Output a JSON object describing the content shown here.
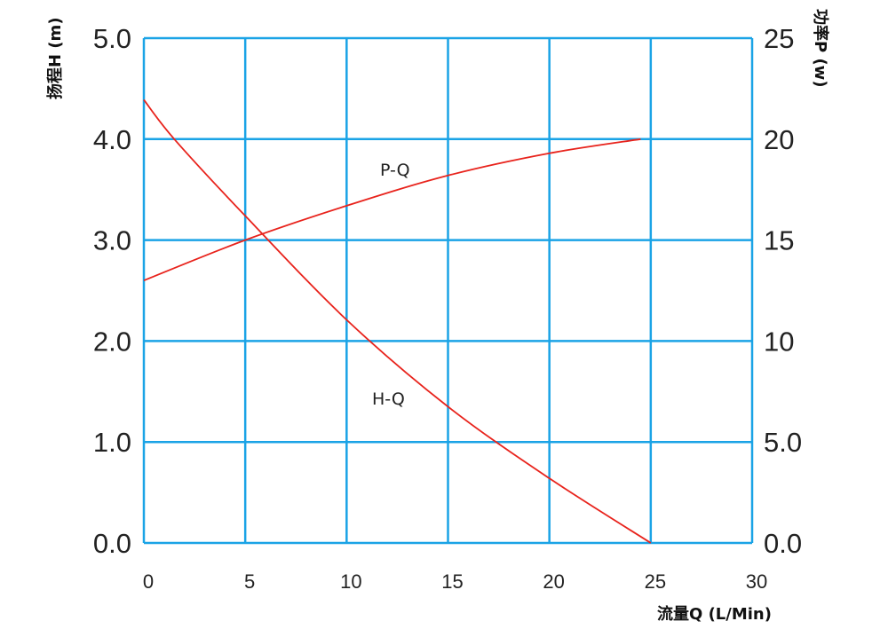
{
  "chart_data": {
    "type": "line",
    "xlabel": "流量Q (L/Min)",
    "ylabel_left": "扬程H (m)",
    "ylabel_right": "功率P (w)",
    "xlim": [
      0,
      30
    ],
    "ylim_left": [
      0,
      5
    ],
    "ylim_right": [
      0,
      25
    ],
    "x_ticks": [
      "0",
      "5",
      "10",
      "15",
      "20",
      "25",
      "30"
    ],
    "y_left_ticks": [
      "0.0",
      "1.0",
      "2.0",
      "3.0",
      "4.0",
      "5.0"
    ],
    "y_right_ticks": [
      "0.0",
      "5.0",
      "10",
      "15",
      "20",
      "25"
    ],
    "grid": true,
    "colors": {
      "grid": "#1aa3e6",
      "curve": "#e8231c"
    },
    "series": [
      {
        "name": "H-Q",
        "axis": "left",
        "x": [
          0,
          1.5,
          5,
          10,
          15,
          20,
          25
        ],
        "y": [
          4.39,
          4.0,
          3.24,
          2.21,
          1.35,
          0.64,
          0
        ]
      },
      {
        "name": "P-Q",
        "axis": "right",
        "x": [
          0,
          5,
          10,
          15,
          20,
          24.5
        ],
        "y": [
          13.0,
          15.0,
          16.7,
          18.2,
          19.3,
          20.0
        ]
      }
    ]
  }
}
